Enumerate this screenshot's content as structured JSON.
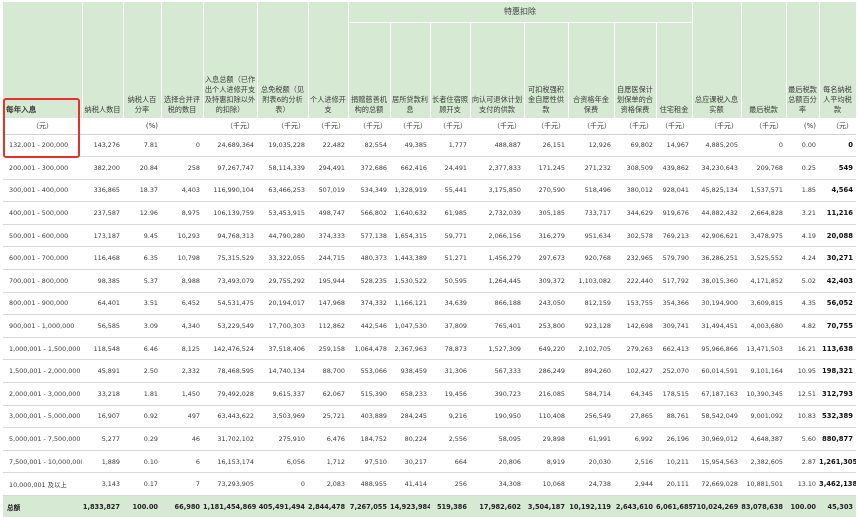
{
  "header": {
    "group_label": "特惠扣除",
    "columns": [
      "每年入息",
      "纳税人数目",
      "纳税人百分率",
      "选择合并评税的数目",
      "入息总额（已作出个人进修开支及特惠扣除以外的扣除）",
      "总免税额（见附表6的分析表）",
      "个人进修开支",
      "捐赠慈善机构的总额",
      "居所贷款利息",
      "长者住宿照顾开支",
      "向认可退休计划支付的供款",
      "可扣税强积金自愿性供款",
      "合资格年金保费",
      "自愿医保计划保单的合资格保费",
      "住宅租金",
      "总应课税入息实额",
      "最后税款",
      "最后税款总额百分率",
      "每名纳税人平均税款"
    ],
    "units": [
      "（元）",
      "",
      "(%)",
      "",
      "（千元）",
      "（千元）",
      "（千元）",
      "（千元）",
      "（千元）",
      "（千元）",
      "（千元）",
      "（千元）",
      "（千元）",
      "（千元）",
      "（千元）",
      "（千元）",
      "（千元）",
      "(%)",
      "（元）"
    ]
  },
  "rows": [
    [
      "132,001 - 200,000",
      "143,276",
      "7.81",
      "0",
      "24,689,364",
      "19,035,228",
      "22,482",
      "82,554",
      "49,385",
      "1,777",
      "488,887",
      "26,151",
      "12,926",
      "69,802",
      "14,967",
      "4,885,205",
      "0",
      "0.00",
      "0"
    ],
    [
      "200,001 - 300,000",
      "382,200",
      "20.84",
      "258",
      "97,267,747",
      "58,114,339",
      "294,491",
      "372,686",
      "662,416",
      "24,491",
      "2,377,833",
      "171,245",
      "271,232",
      "308,509",
      "439,862",
      "34,230,643",
      "209,768",
      "0.25",
      "549"
    ],
    [
      "300,001 - 400,000",
      "336,865",
      "18.37",
      "4,403",
      "116,990,104",
      "63,466,253",
      "507,019",
      "534,349",
      "1,328,919",
      "55,441",
      "3,175,850",
      "270,590",
      "518,496",
      "380,012",
      "928,041",
      "45,825,134",
      "1,537,571",
      "1.85",
      "4,564"
    ],
    [
      "400,001 - 500,000",
      "237,587",
      "12.96",
      "8,975",
      "106,139,759",
      "53,453,915",
      "498,747",
      "566,802",
      "1,640,632",
      "61,985",
      "2,732,039",
      "305,185",
      "733,717",
      "344,629",
      "919,676",
      "44,882,432",
      "2,664,828",
      "3.21",
      "11,216"
    ],
    [
      "500,001 - 600,000",
      "173,187",
      "9.45",
      "10,293",
      "94,768,313",
      "44,790,280",
      "374,333",
      "577,138",
      "1,654,315",
      "59,771",
      "2,066,156",
      "316,279",
      "951,634",
      "302,578",
      "769,213",
      "42,906,621",
      "3,478,975",
      "4.19",
      "20,088"
    ],
    [
      "600,001 - 700,000",
      "116,468",
      "6.35",
      "10,798",
      "75,315,529",
      "33,322,055",
      "244,715",
      "480,373",
      "1,443,389",
      "51,271",
      "1,456,279",
      "297,673",
      "920,768",
      "232,965",
      "579,790",
      "36,286,251",
      "3,525,552",
      "4.24",
      "30,271"
    ],
    [
      "700,001 - 800,000",
      "98,385",
      "5.37",
      "8,988",
      "73,493,079",
      "29,755,292",
      "195,944",
      "528,235",
      "1,530,522",
      "50,595",
      "1,264,445",
      "309,372",
      "1,103,082",
      "222,440",
      "517,792",
      "38,015,360",
      "4,171,852",
      "5.02",
      "42,403"
    ],
    [
      "800,001 - 900,000",
      "64,401",
      "3.51",
      "6,452",
      "54,531,475",
      "20,194,017",
      "147,968",
      "374,332",
      "1,166,121",
      "34,639",
      "866,188",
      "243,050",
      "812,159",
      "153,755",
      "354,366",
      "30,194,900",
      "3,609,815",
      "4.35",
      "56,052"
    ],
    [
      "900,001 - 1,000,000",
      "56,585",
      "3.09",
      "4,340",
      "53,229,549",
      "17,700,303",
      "112,862",
      "442,546",
      "1,047,530",
      "37,809",
      "765,401",
      "253,800",
      "923,128",
      "142,698",
      "309,741",
      "31,494,451",
      "4,003,680",
      "4.82",
      "70,755"
    ],
    [
      "1,000,001 - 1,500,000",
      "118,548",
      "6.46",
      "8,125",
      "142,476,524",
      "37,518,406",
      "259,158",
      "1,064,478",
      "2,367,963",
      "78,873",
      "1,527,309",
      "649,220",
      "2,102,705",
      "279,263",
      "662,413",
      "95,966,866",
      "13,471,503",
      "16.21",
      "113,638"
    ],
    [
      "1,500,001 - 2,000,000",
      "45,891",
      "2.50",
      "2,332",
      "78,468,595",
      "14,740,134",
      "88,700",
      "553,066",
      "938,459",
      "31,306",
      "567,333",
      "286,249",
      "894,260",
      "102,427",
      "252,070",
      "60,014,591",
      "9,101,164",
      "10.95",
      "198,321"
    ],
    [
      "2,000,001 - 3,000,000",
      "33,218",
      "1.81",
      "1,450",
      "79,492,028",
      "9,615,337",
      "62,067",
      "515,390",
      "658,233",
      "19,456",
      "390,723",
      "216,085",
      "584,714",
      "64,345",
      "178,515",
      "67,187,163",
      "10,390,345",
      "12.51",
      "312,793"
    ],
    [
      "3,000,001 - 5,000,000",
      "16,907",
      "0.92",
      "497",
      "63,443,622",
      "3,503,969",
      "25,721",
      "403,889",
      "284,245",
      "9,216",
      "190,950",
      "110,408",
      "256,549",
      "27,865",
      "88,761",
      "58,542,049",
      "9,001,092",
      "10.83",
      "532,389"
    ],
    [
      "5,000,001 - 7,500,000",
      "5,277",
      "0.29",
      "46",
      "31,702,102",
      "275,910",
      "6,476",
      "184,752",
      "80,224",
      "2,556",
      "58,095",
      "29,898",
      "61,991",
      "6,992",
      "26,196",
      "30,969,012",
      "4,648,387",
      "5.60",
      "880,877"
    ],
    [
      "7,500,001 - 10,000,000",
      "1,889",
      "0.10",
      "6",
      "16,153,174",
      "6,056",
      "1,712",
      "97,510",
      "30,217",
      "664",
      "20,806",
      "8,919",
      "20,030",
      "2,516",
      "10,211",
      "15,954,563",
      "2,382,605",
      "2.87",
      "1,261,305"
    ],
    [
      "10,000,001 及以上",
      "3,143",
      "0.17",
      "7",
      "73,293,905",
      "0",
      "2,083",
      "488,955",
      "41,414",
      "256",
      "34,308",
      "10,068",
      "24,738",
      "2,944",
      "20,111",
      "72,669,028",
      "10,881,501",
      "13.10",
      "3,462,138"
    ]
  ],
  "total": [
    "总额",
    "1,833,827",
    "100.00",
    "66,980",
    "1,181,454,869",
    "405,491,494",
    "2,844,478",
    "7,267,055",
    "14,923,984",
    "519,386",
    "17,982,602",
    "3,504,187",
    "10,192,119",
    "2,643,610",
    "6,061,685",
    "710,024,269",
    "83,078,638",
    "100.00",
    "45,303"
  ],
  "highlight_color": "#e6312b",
  "header_bg": "#d6ead3"
}
